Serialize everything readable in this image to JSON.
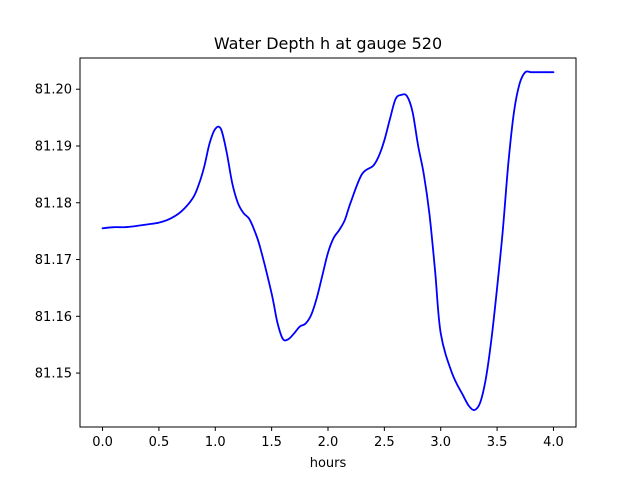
{
  "chart_data": {
    "type": "line",
    "title": "Water Depth h at gauge 520",
    "xlabel": "hours",
    "ylabel": "",
    "xlim": [
      -0.2,
      4.2
    ],
    "ylim": [
      81.1405,
      81.2055
    ],
    "xticks": [
      0.0,
      0.5,
      1.0,
      1.5,
      2.0,
      2.5,
      3.0,
      3.5,
      4.0
    ],
    "xtick_labels": [
      "0.0",
      "0.5",
      "1.0",
      "1.5",
      "2.0",
      "2.5",
      "3.0",
      "3.5",
      "4.0"
    ],
    "yticks": [
      81.15,
      81.16,
      81.17,
      81.18,
      81.19,
      81.2
    ],
    "ytick_labels": [
      "81.15",
      "81.16",
      "81.17",
      "81.18",
      "81.19",
      "81.20"
    ],
    "grid": false,
    "series": [
      {
        "color": "#0000ff",
        "x": [
          0.0,
          0.1,
          0.2,
          0.3,
          0.4,
          0.5,
          0.6,
          0.7,
          0.8,
          0.85,
          0.9,
          0.95,
          1.0,
          1.05,
          1.1,
          1.15,
          1.2,
          1.25,
          1.3,
          1.35,
          1.4,
          1.5,
          1.55,
          1.6,
          1.65,
          1.7,
          1.75,
          1.8,
          1.85,
          1.9,
          1.95,
          2.0,
          2.05,
          2.1,
          2.15,
          2.2,
          2.3,
          2.4,
          2.45,
          2.5,
          2.55,
          2.6,
          2.65,
          2.7,
          2.75,
          2.8,
          2.85,
          2.9,
          2.95,
          3.0,
          3.1,
          3.2,
          3.25,
          3.3,
          3.35,
          3.4,
          3.45,
          3.5,
          3.55,
          3.6,
          3.65,
          3.7,
          3.75,
          3.8,
          3.85,
          3.9,
          3.95,
          4.0
        ],
        "y": [
          81.1755,
          81.1757,
          81.1757,
          81.1759,
          81.1762,
          81.1765,
          81.1772,
          81.1785,
          81.1808,
          81.183,
          81.1862,
          81.1905,
          81.193,
          81.193,
          81.189,
          81.1835,
          81.18,
          81.1782,
          81.1772,
          81.175,
          81.172,
          81.164,
          81.159,
          81.156,
          81.156,
          81.157,
          81.1582,
          81.1587,
          81.1602,
          81.1632,
          81.1672,
          81.1712,
          81.1738,
          81.1752,
          81.177,
          81.18,
          81.185,
          81.1865,
          81.1882,
          81.191,
          81.1948,
          81.1983,
          81.199,
          81.1988,
          81.196,
          81.19,
          81.185,
          81.178,
          81.168,
          81.157,
          81.15,
          81.146,
          81.1442,
          81.1435,
          81.1448,
          81.149,
          81.156,
          81.165,
          81.175,
          81.187,
          81.196,
          81.201,
          81.203,
          81.203,
          81.203,
          81.203,
          81.203,
          81.203
        ]
      }
    ]
  }
}
